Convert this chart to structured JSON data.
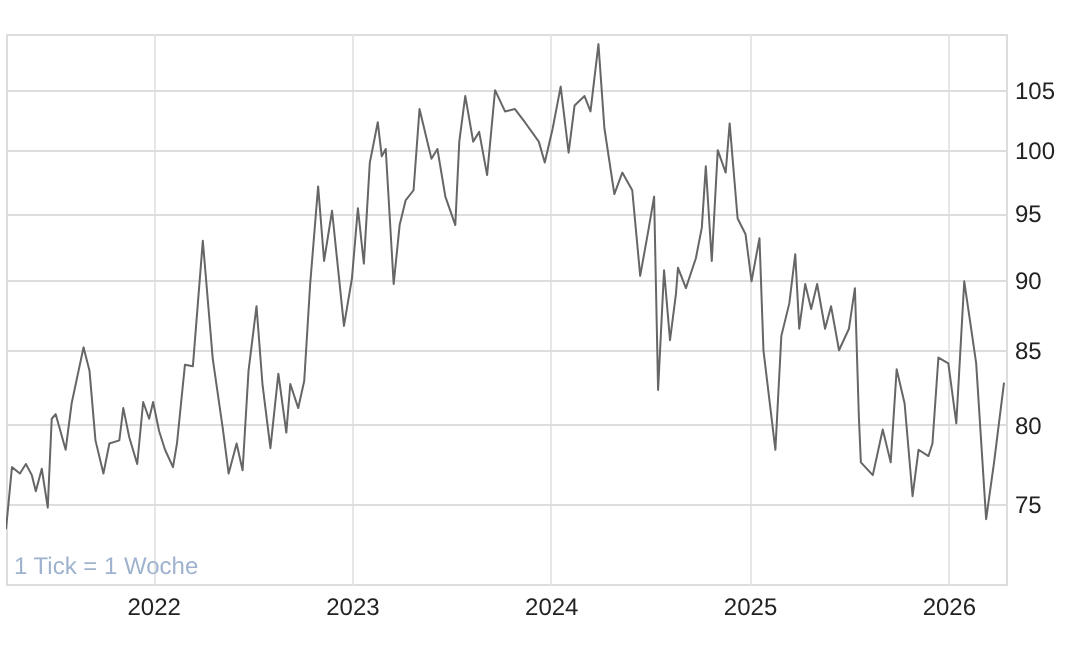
{
  "chart_data": {
    "type": "line",
    "color": "#666666",
    "log": true,
    "grid": true,
    "xlim": [
      2021.26,
      2026.29
    ],
    "xticks": [
      2022,
      2023,
      2024,
      2025,
      2026
    ],
    "ylim": [
      70.3,
      109.9
    ],
    "yticks": [
      75,
      80,
      85,
      90,
      95,
      100,
      105
    ],
    "annotations": [
      "1 Tick = 1 Woche"
    ],
    "x": [
      2021.26,
      2021.29,
      2021.33,
      2021.36,
      2021.39,
      2021.41,
      2021.44,
      2021.47,
      2021.49,
      2021.51,
      2021.56,
      2021.59,
      2021.65,
      2021.68,
      2021.71,
      2021.75,
      2021.78,
      2021.83,
      2021.85,
      2021.88,
      2021.92,
      2021.95,
      2021.98,
      2022.0,
      2022.03,
      2022.06,
      2022.1,
      2022.12,
      2022.16,
      2022.2,
      2022.25,
      2022.3,
      2022.35,
      2022.38,
      2022.42,
      2022.45,
      2022.48,
      2022.52,
      2022.55,
      2022.59,
      2022.63,
      2022.67,
      2022.69,
      2022.73,
      2022.76,
      2022.79,
      2022.83,
      2022.86,
      2022.9,
      2022.96,
      2023.0,
      2023.03,
      2023.06,
      2023.09,
      2023.13,
      2023.15,
      2023.17,
      2023.21,
      2023.24,
      2023.27,
      2023.31,
      2023.34,
      2023.4,
      2023.43,
      2023.47,
      2023.52,
      2023.54,
      2023.57,
      2023.61,
      2023.64,
      2023.68,
      2023.72,
      2023.77,
      2023.82,
      2023.87,
      2023.94,
      2023.97,
      2024.01,
      2024.05,
      2024.09,
      2024.12,
      2024.17,
      2024.2,
      2024.24,
      2024.27,
      2024.32,
      2024.36,
      2024.41,
      2024.45,
      2024.49,
      2024.52,
      2024.54,
      2024.57,
      2024.6,
      2024.63,
      2024.64,
      2024.68,
      2024.73,
      2024.76,
      2024.78,
      2024.81,
      2024.84,
      2024.88,
      2024.9,
      2024.94,
      2024.98,
      2025.01,
      2025.05,
      2025.07,
      2025.13,
      2025.16,
      2025.2,
      2025.23,
      2025.25,
      2025.28,
      2025.31,
      2025.34,
      2025.38,
      2025.41,
      2025.45,
      2025.5,
      2025.53,
      2025.55,
      2025.56,
      2025.62,
      2025.67,
      2025.71,
      2025.74,
      2025.78,
      2025.82,
      2025.85,
      2025.9,
      2025.92,
      2025.95,
      2026.0,
      2026.04,
      2026.08,
      2026.12,
      2026.14,
      2026.19,
      2026.23,
      2026.28
    ],
    "values": [
      73.5,
      77.3,
      76.9,
      77.5,
      76.8,
      75.8,
      77.2,
      74.8,
      80.4,
      80.7,
      78.4,
      81.4,
      85.2,
      83.6,
      79.0,
      76.9,
      78.8,
      79.0,
      81.1,
      79.2,
      77.5,
      81.5,
      80.4,
      81.5,
      79.6,
      78.4,
      77.3,
      78.8,
      84.0,
      83.9,
      92.9,
      84.4,
      79.8,
      76.9,
      78.8,
      77.1,
      83.6,
      88.1,
      82.7,
      78.5,
      83.4,
      79.5,
      82.7,
      81.1,
      82.9,
      89.7,
      97.1,
      91.4,
      95.2,
      86.7,
      90.1,
      95.4,
      91.2,
      99.0,
      102.3,
      99.5,
      100.1,
      89.7,
      94.1,
      96.0,
      96.8,
      103.4,
      99.3,
      100.1,
      96.3,
      94.1,
      100.7,
      104.5,
      100.7,
      101.5,
      98.0,
      105,
      103.2,
      103.4,
      102.3,
      100.7,
      99.0,
      101.8,
      105.3,
      99.8,
      103.7,
      104.5,
      103.2,
      109,
      101.8,
      96.5,
      98.2,
      96.8,
      90.3,
      93.6,
      96.3,
      82.3,
      90.7,
      85.7,
      89.0,
      90.9,
      89.4,
      91.6,
      93.9,
      98.7,
      91.4,
      100,
      98.2,
      102.2,
      94.6,
      93.4,
      89.9,
      93.1,
      85.0,
      78.4,
      86.0,
      88.3,
      91.9,
      86.5,
      89.7,
      87.9,
      89.7,
      86.5,
      88.1,
      85.0,
      86.5,
      89.4,
      80.5,
      77.6,
      76.8,
      79.7,
      77.6,
      83.7,
      81.4,
      75.5,
      78.4,
      78.0,
      78.8,
      84.5,
      84.1,
      80.1,
      89.9,
      86.0,
      84.1,
      74.1,
      77.6,
      82.8
    ]
  }
}
